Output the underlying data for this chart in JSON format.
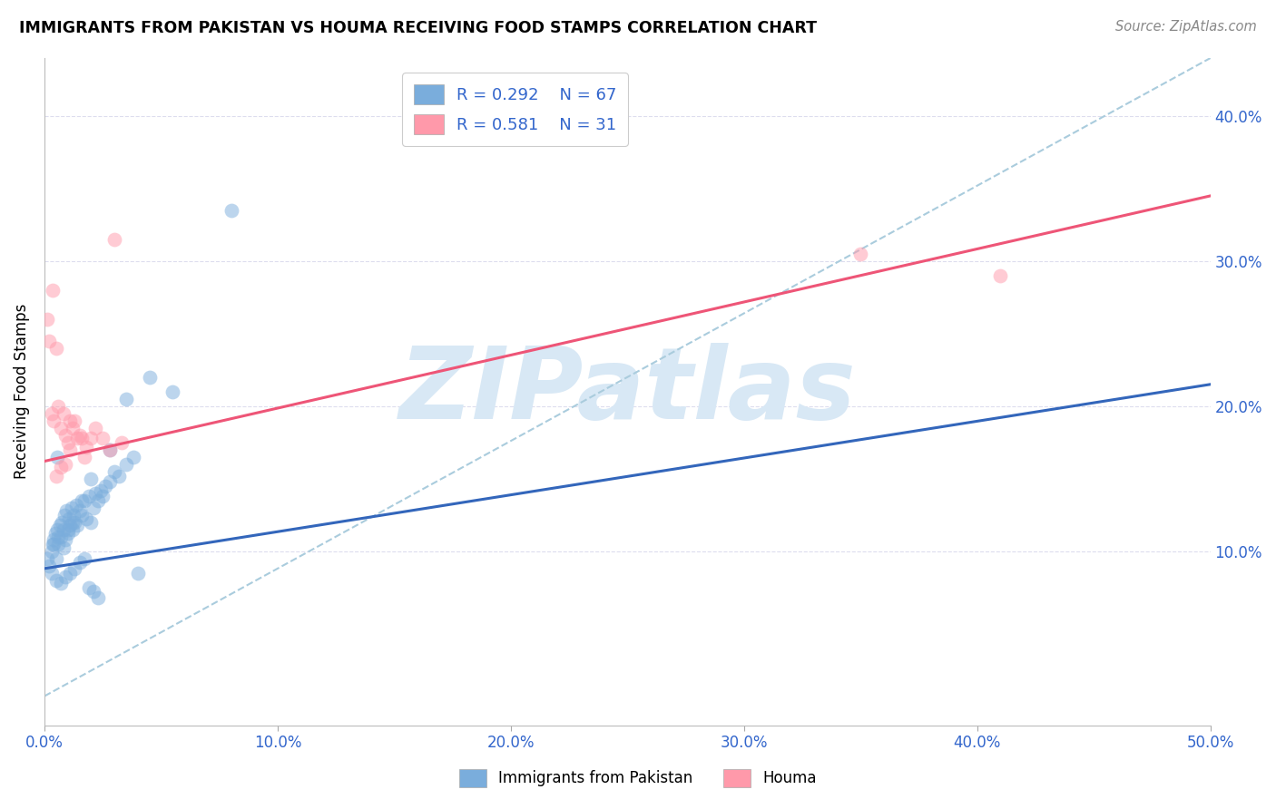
{
  "title": "IMMIGRANTS FROM PAKISTAN VS HOUMA RECEIVING FOOD STAMPS CORRELATION CHART",
  "source": "Source: ZipAtlas.com",
  "ylabel": "Receiving Food Stamps",
  "xlim": [
    0.0,
    50.0
  ],
  "ylim": [
    -2.0,
    44.0
  ],
  "xticks": [
    0.0,
    10.0,
    20.0,
    30.0,
    40.0,
    50.0
  ],
  "yticks": [
    10.0,
    20.0,
    30.0,
    40.0
  ],
  "xticklabels": [
    "0.0%",
    "10.0%",
    "20.0%",
    "30.0%",
    "40.0%",
    "50.0%"
  ],
  "yticklabels": [
    "10.0%",
    "20.0%",
    "30.0%",
    "40.0%"
  ],
  "legend_r1": "R = 0.292",
  "legend_n1": "N = 67",
  "legend_r2": "R = 0.581",
  "legend_n2": "N = 31",
  "color_blue": "#7AADDC",
  "color_pink": "#FF99AA",
  "color_blue_line": "#3366BB",
  "color_pink_line": "#EE5577",
  "color_dashed": "#AACCDD",
  "legend_text_color": "#3366CC",
  "watermark_color": "#D8E8F5",
  "legend_label1": "Immigrants from Pakistan",
  "legend_label2": "Houma",
  "blue_points_x": [
    0.1,
    0.2,
    0.3,
    0.35,
    0.4,
    0.45,
    0.5,
    0.55,
    0.6,
    0.65,
    0.7,
    0.75,
    0.8,
    0.85,
    0.9,
    0.95,
    1.0,
    1.05,
    1.1,
    1.15,
    1.2,
    1.25,
    1.3,
    1.35,
    1.4,
    1.5,
    1.6,
    1.7,
    1.8,
    1.9,
    2.0,
    2.1,
    2.2,
    2.3,
    2.4,
    2.5,
    2.6,
    2.8,
    3.0,
    3.2,
    3.5,
    3.8,
    0.3,
    0.5,
    0.7,
    0.9,
    1.1,
    1.3,
    1.5,
    1.7,
    1.9,
    2.1,
    2.3,
    0.4,
    0.6,
    0.8,
    1.0,
    1.2,
    1.6,
    2.0,
    2.8,
    3.5,
    4.5,
    5.5,
    8.0,
    4.0,
    0.55
  ],
  "blue_points_y": [
    9.5,
    9.0,
    10.0,
    10.5,
    10.8,
    11.2,
    9.5,
    11.5,
    10.5,
    11.8,
    11.0,
    12.0,
    11.5,
    12.5,
    10.8,
    12.8,
    11.2,
    12.2,
    11.8,
    13.0,
    11.5,
    12.5,
    12.0,
    13.2,
    11.8,
    12.8,
    12.5,
    13.5,
    12.2,
    13.8,
    12.0,
    13.0,
    14.0,
    13.5,
    14.2,
    13.8,
    14.5,
    14.8,
    15.5,
    15.2,
    16.0,
    16.5,
    8.5,
    8.0,
    7.8,
    8.2,
    8.5,
    8.8,
    9.2,
    9.5,
    7.5,
    7.2,
    6.8,
    10.5,
    11.0,
    10.2,
    11.5,
    12.0,
    13.5,
    15.0,
    17.0,
    20.5,
    22.0,
    21.0,
    33.5,
    8.5,
    16.5
  ],
  "pink_points_x": [
    0.1,
    0.2,
    0.3,
    0.35,
    0.4,
    0.5,
    0.6,
    0.7,
    0.8,
    0.9,
    1.0,
    1.1,
    1.2,
    1.3,
    1.4,
    1.5,
    1.6,
    1.7,
    1.8,
    2.0,
    2.2,
    2.5,
    2.8,
    3.0,
    3.3,
    0.5,
    0.7,
    0.9,
    1.1,
    35.0,
    41.0
  ],
  "pink_points_y": [
    26.0,
    24.5,
    19.5,
    28.0,
    19.0,
    24.0,
    20.0,
    18.5,
    19.5,
    18.0,
    17.5,
    19.0,
    18.5,
    19.0,
    17.8,
    18.0,
    17.8,
    16.5,
    17.2,
    17.8,
    18.5,
    17.8,
    17.0,
    31.5,
    17.5,
    15.2,
    15.8,
    16.0,
    17.0,
    30.5,
    29.0
  ],
  "blue_line_x": [
    0.0,
    50.0
  ],
  "blue_line_y": [
    8.8,
    21.5
  ],
  "pink_line_x": [
    0.0,
    50.0
  ],
  "pink_line_y": [
    16.2,
    34.5
  ],
  "dashed_line_x": [
    0.0,
    50.0
  ],
  "dashed_line_y": [
    0.0,
    44.0
  ]
}
